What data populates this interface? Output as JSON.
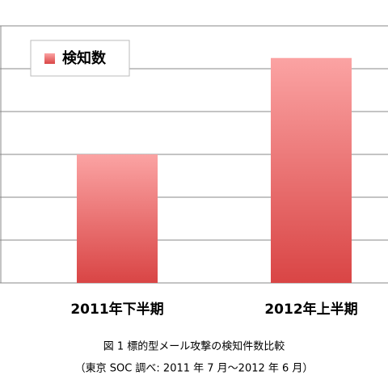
{
  "chart_data": {
    "type": "bar",
    "legend": "検知数",
    "categories": [
      "2011年下半期",
      "2012年上半期"
    ],
    "values": [
      3,
      5.25
    ],
    "color": "#d94545",
    "ylim": [
      0,
      6
    ],
    "yticks": [
      0,
      1,
      2,
      3,
      4,
      5,
      6
    ],
    "grid": true,
    "caption": [
      "図 1  標的型メール攻撃の検知件数比較",
      "（東京 SOC 調べ:  2011 年 7 月～2012 年 6 月）"
    ]
  }
}
